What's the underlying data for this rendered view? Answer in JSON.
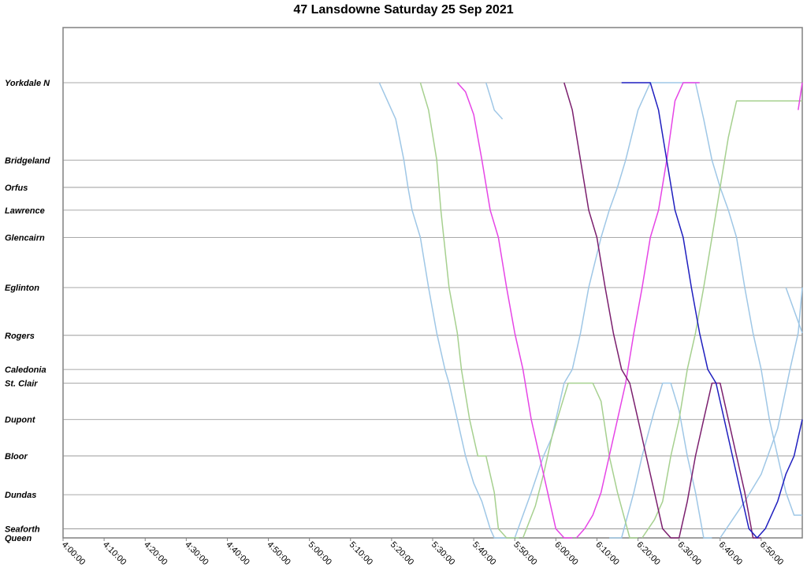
{
  "chart_data": {
    "type": "line",
    "title": "47 Lansdowne Saturday 25 Sep 2021",
    "xlabel": "",
    "ylabel": "",
    "x_unit": "time of day",
    "xlim": [
      "4:00:00",
      "7:00:00"
    ],
    "x_ticks": [
      "4:00:00",
      "4:10:00",
      "4:20:00",
      "4:30:00",
      "4:40:00",
      "4:50:00",
      "5:00:00",
      "5:10:00",
      "5:20:00",
      "5:30:00",
      "5:40:00",
      "5:50:00",
      "6:00:00",
      "6:10:00",
      "6:20:00",
      "6:30:00",
      "6:40:00",
      "6:50:00"
    ],
    "stops": [
      {
        "name": "Yorkdale N",
        "pos": 0
      },
      {
        "name": "Bridgeland",
        "pos": 17
      },
      {
        "name": "Orfus",
        "pos": 23
      },
      {
        "name": "Lawrence",
        "pos": 28
      },
      {
        "name": "Glencairn",
        "pos": 34
      },
      {
        "name": "Eglinton",
        "pos": 45
      },
      {
        "name": "Rogers",
        "pos": 55.5
      },
      {
        "name": "Caledonia",
        "pos": 63
      },
      {
        "name": "St. Clair",
        "pos": 66
      },
      {
        "name": "Dupont",
        "pos": 74
      },
      {
        "name": "Bloor",
        "pos": 82
      },
      {
        "name": "Dundas",
        "pos": 90.5
      },
      {
        "name": "Seaforth",
        "pos": 98
      },
      {
        "name": "Queen",
        "pos": 100
      }
    ],
    "grid": true,
    "legend": "none",
    "series": [
      {
        "color": "#9fc7e6",
        "points": [
          [
            "5:17:00",
            0
          ],
          [
            "5:19:00",
            4
          ],
          [
            "5:21:00",
            8
          ],
          [
            "5:23:00",
            17
          ],
          [
            "5:24:00",
            23
          ],
          [
            "5:25:00",
            28
          ],
          [
            "5:27:00",
            34
          ],
          [
            "5:29:00",
            45
          ],
          [
            "5:31:00",
            55
          ],
          [
            "5:33:00",
            63
          ],
          [
            "5:34:00",
            66
          ],
          [
            "5:36:00",
            74
          ],
          [
            "5:38:00",
            82
          ],
          [
            "5:40:00",
            88
          ],
          [
            "5:42:00",
            92
          ],
          [
            "5:44:00",
            98
          ],
          [
            "5:45:00",
            100
          ],
          [
            "5:51:00",
            100
          ]
        ]
      },
      {
        "color": "#9fc7e6",
        "points": [
          [
            "5:43:00",
            0
          ],
          [
            "5:44:00",
            3
          ],
          [
            "5:45:00",
            6
          ],
          [
            "5:47:00",
            8
          ]
        ]
      },
      {
        "color": "#9fc7e6",
        "points": [
          [
            "5:50:00",
            100
          ],
          [
            "5:52:00",
            95
          ],
          [
            "5:54:00",
            90
          ],
          [
            "5:57:00",
            82
          ],
          [
            "5:59:00",
            78
          ],
          [
            "6:02:00",
            66
          ],
          [
            "6:04:00",
            63
          ],
          [
            "6:06:00",
            55
          ],
          [
            "6:08:00",
            45
          ],
          [
            "6:11:00",
            34
          ],
          [
            "6:13:00",
            28
          ],
          [
            "6:15:00",
            23
          ],
          [
            "6:17:00",
            17
          ],
          [
            "6:20:00",
            6
          ],
          [
            "6:23:00",
            0
          ],
          [
            "6:35:00",
            0
          ]
        ]
      },
      {
        "color": "#9fc7e6",
        "points": [
          [
            "6:13:00",
            100
          ],
          [
            "6:16:00",
            100
          ],
          [
            "6:19:00",
            90
          ],
          [
            "6:21:00",
            82
          ],
          [
            "6:24:00",
            72
          ],
          [
            "6:26:00",
            66
          ],
          [
            "6:28:00",
            66
          ],
          [
            "6:30:00",
            72
          ],
          [
            "6:32:00",
            82
          ],
          [
            "6:34:00",
            90
          ],
          [
            "6:36:00",
            100
          ],
          [
            "6:38:00",
            100
          ]
        ]
      },
      {
        "color": "#9fc7e6",
        "points": [
          [
            "6:34:00",
            0
          ],
          [
            "6:36:00",
            8
          ],
          [
            "6:38:00",
            17
          ],
          [
            "6:40:00",
            23
          ],
          [
            "6:42:00",
            28
          ],
          [
            "6:44:00",
            34
          ],
          [
            "6:46:00",
            45
          ],
          [
            "6:48:00",
            55
          ],
          [
            "6:50:00",
            63
          ],
          [
            "6:52:00",
            74
          ],
          [
            "6:54:00",
            82
          ],
          [
            "6:56:00",
            90
          ],
          [
            "6:58:00",
            95
          ],
          [
            "7:00:00",
            95
          ]
        ]
      },
      {
        "color": "#9fc7e6",
        "points": [
          [
            "6:40:00",
            100
          ],
          [
            "6:43:00",
            96
          ],
          [
            "6:46:00",
            92
          ],
          [
            "6:50:00",
            86
          ],
          [
            "6:54:00",
            76
          ],
          [
            "6:57:00",
            63
          ],
          [
            "6:59:00",
            55
          ],
          [
            "7:00:00",
            45
          ]
        ]
      },
      {
        "color": "#9fc7e6",
        "points": [
          [
            "6:56:00",
            45
          ],
          [
            "6:58:00",
            50
          ],
          [
            "7:00:00",
            55
          ]
        ]
      },
      {
        "color": "#a6d08f",
        "points": [
          [
            "5:27:00",
            0
          ],
          [
            "5:29:00",
            6
          ],
          [
            "5:31:00",
            17
          ],
          [
            "5:32:00",
            28
          ],
          [
            "5:34:00",
            45
          ],
          [
            "5:36:00",
            55
          ],
          [
            "5:37:00",
            63
          ],
          [
            "5:39:00",
            74
          ],
          [
            "5:41:00",
            82
          ],
          [
            "5:43:00",
            82
          ],
          [
            "5:45:00",
            90
          ],
          [
            "5:46:00",
            98
          ],
          [
            "5:48:00",
            100
          ],
          [
            "5:51:00",
            100
          ]
        ]
      },
      {
        "color": "#a6d08f",
        "points": [
          [
            "5:52:00",
            100
          ],
          [
            "5:55:00",
            93
          ],
          [
            "5:57:00",
            86
          ],
          [
            "5:59:00",
            78
          ],
          [
            "6:01:00",
            72
          ],
          [
            "6:03:00",
            66
          ],
          [
            "6:07:00",
            66
          ],
          [
            "6:09:00",
            66
          ],
          [
            "6:11:00",
            70
          ],
          [
            "6:13:00",
            82
          ],
          [
            "6:15:00",
            90
          ],
          [
            "6:18:00",
            100
          ],
          [
            "6:20:00",
            100
          ]
        ]
      },
      {
        "color": "#a6d08f",
        "points": [
          [
            "6:21:00",
            100
          ],
          [
            "6:24:00",
            96
          ],
          [
            "6:26:00",
            92
          ],
          [
            "6:28:00",
            82
          ],
          [
            "6:30:00",
            74
          ],
          [
            "6:32:00",
            63
          ],
          [
            "6:34:00",
            55
          ],
          [
            "6:36:00",
            45
          ],
          [
            "6:38:00",
            34
          ],
          [
            "6:40:00",
            23
          ],
          [
            "6:42:00",
            12
          ],
          [
            "6:44:00",
            4
          ],
          [
            "6:52:00",
            4
          ],
          [
            "6:55:00",
            4
          ],
          [
            "7:00:00",
            4
          ]
        ]
      },
      {
        "color": "#e645e6",
        "points": [
          [
            "5:36:00",
            0
          ],
          [
            "5:38:00",
            2
          ],
          [
            "5:40:00",
            7
          ],
          [
            "5:42:00",
            17
          ],
          [
            "5:44:00",
            28
          ],
          [
            "5:46:00",
            34
          ],
          [
            "5:48:00",
            45
          ],
          [
            "5:50:00",
            55
          ],
          [
            "5:52:00",
            63
          ],
          [
            "5:54:00",
            74
          ],
          [
            "5:56:00",
            82
          ],
          [
            "5:58:00",
            90
          ],
          [
            "6:00:00",
            98
          ],
          [
            "6:02:00",
            100
          ],
          [
            "6:04:00",
            100
          ]
        ]
      },
      {
        "color": "#e645e6",
        "points": [
          [
            "6:05:00",
            100
          ],
          [
            "6:07:00",
            98
          ],
          [
            "6:09:00",
            95
          ],
          [
            "6:11:00",
            90
          ],
          [
            "6:13:00",
            82
          ],
          [
            "6:15:00",
            74
          ],
          [
            "6:17:00",
            66
          ],
          [
            "6:19:00",
            55
          ],
          [
            "6:21:00",
            45
          ],
          [
            "6:23:00",
            34
          ],
          [
            "6:25:00",
            28
          ],
          [
            "6:27:00",
            17
          ],
          [
            "6:29:00",
            4
          ],
          [
            "6:31:00",
            0
          ],
          [
            "6:35:00",
            0
          ]
        ]
      },
      {
        "color": "#e645e6",
        "points": [
          [
            "6:59:00",
            6
          ],
          [
            "7:00:00",
            0
          ]
        ]
      },
      {
        "color": "#7b1f6e",
        "points": [
          [
            "6:02:00",
            0
          ],
          [
            "6:04:00",
            6
          ],
          [
            "6:06:00",
            17
          ],
          [
            "6:08:00",
            28
          ],
          [
            "6:10:00",
            34
          ],
          [
            "6:12:00",
            45
          ],
          [
            "6:14:00",
            55
          ],
          [
            "6:16:00",
            63
          ],
          [
            "6:18:00",
            66
          ],
          [
            "6:20:00",
            74
          ],
          [
            "6:22:00",
            82
          ],
          [
            "6:24:00",
            90
          ],
          [
            "6:26:00",
            98
          ],
          [
            "6:28:00",
            100
          ],
          [
            "6:30:00",
            100
          ]
        ]
      },
      {
        "color": "#7b1f6e",
        "points": [
          [
            "6:30:00",
            100
          ],
          [
            "6:32:00",
            92
          ],
          [
            "6:34:00",
            82
          ],
          [
            "6:36:00",
            74
          ],
          [
            "6:38:00",
            66
          ],
          [
            "6:40:00",
            66
          ],
          [
            "6:42:00",
            74
          ],
          [
            "6:44:00",
            82
          ],
          [
            "6:46:00",
            90
          ],
          [
            "6:48:00",
            100
          ],
          [
            "6:50:00",
            100
          ]
        ]
      },
      {
        "color": "#1f1fbf",
        "points": [
          [
            "6:16:00",
            0
          ],
          [
            "6:23:00",
            0
          ],
          [
            "6:25:00",
            6
          ],
          [
            "6:27:00",
            17
          ],
          [
            "6:29:00",
            28
          ],
          [
            "6:31:00",
            34
          ],
          [
            "6:33:00",
            45
          ],
          [
            "6:35:00",
            55
          ],
          [
            "6:37:00",
            63
          ],
          [
            "6:39:00",
            66
          ],
          [
            "6:41:00",
            74
          ],
          [
            "6:43:00",
            82
          ],
          [
            "6:45:00",
            90
          ],
          [
            "6:47:00",
            98
          ],
          [
            "6:49:00",
            100
          ],
          [
            "6:51:00",
            98
          ],
          [
            "6:54:00",
            92
          ],
          [
            "6:56:00",
            86
          ],
          [
            "6:58:00",
            82
          ],
          [
            "7:00:00",
            74
          ]
        ]
      }
    ]
  }
}
